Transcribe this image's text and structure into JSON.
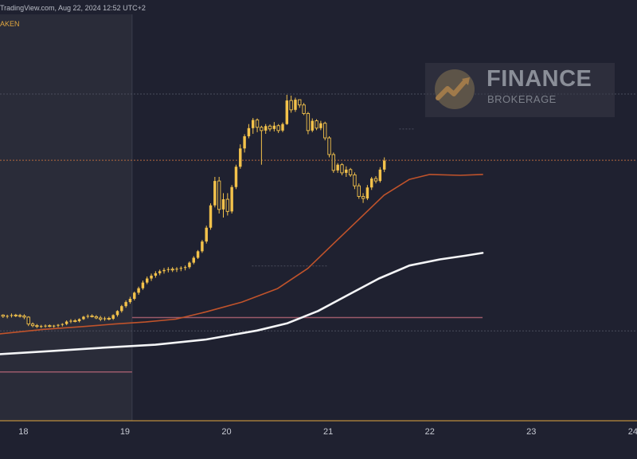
{
  "header": {
    "source": "TradingView.com, Aug 22, 2024 12:52 UTC+2",
    "exchange": "AKEN"
  },
  "watermark": {
    "brand": "FINANCE",
    "sub": "BROKERAGE",
    "logo_icon": "finance-logo-icon"
  },
  "colors": {
    "background": "#1f2130",
    "session_shade": "#2a2c39",
    "bull_candle": "#f3c24b",
    "ma_short": "#c0532b",
    "ma_long": "#f4f5f7",
    "price_line": "#b3683f",
    "level_line": "#9c5a6a"
  },
  "chart_data": {
    "type": "candlestick",
    "x_domain": [
      17.77,
      24.04
    ],
    "y_domain": [
      0,
      1
    ],
    "x_ticks": [
      {
        "value": 18,
        "label": "18"
      },
      {
        "value": 19,
        "label": "19"
      },
      {
        "value": 20,
        "label": "20"
      },
      {
        "value": 21,
        "label": "21"
      },
      {
        "value": 22,
        "label": "22"
      },
      {
        "value": 23,
        "label": "23"
      },
      {
        "value": 24,
        "label": "24"
      }
    ],
    "shaded_range": [
      17.77,
      19.07
    ],
    "candle_start_x": 17.8,
    "candle_step": 0.0417,
    "candles": [
      [
        0.26,
        0.262,
        0.253,
        0.257
      ],
      [
        0.257,
        0.261,
        0.252,
        0.258
      ],
      [
        0.258,
        0.264,
        0.254,
        0.26
      ],
      [
        0.26,
        0.263,
        0.255,
        0.259
      ],
      [
        0.259,
        0.263,
        0.254,
        0.258
      ],
      [
        0.258,
        0.262,
        0.25,
        0.255
      ],
      [
        0.255,
        0.257,
        0.233,
        0.238
      ],
      [
        0.238,
        0.242,
        0.23,
        0.234
      ],
      [
        0.234,
        0.238,
        0.228,
        0.232
      ],
      [
        0.232,
        0.236,
        0.228,
        0.233
      ],
      [
        0.233,
        0.237,
        0.229,
        0.234
      ],
      [
        0.234,
        0.237,
        0.23,
        0.233
      ],
      [
        0.233,
        0.236,
        0.229,
        0.234
      ],
      [
        0.234,
        0.238,
        0.23,
        0.236
      ],
      [
        0.236,
        0.24,
        0.232,
        0.238
      ],
      [
        0.238,
        0.247,
        0.235,
        0.244
      ],
      [
        0.244,
        0.25,
        0.24,
        0.246
      ],
      [
        0.246,
        0.25,
        0.242,
        0.245
      ],
      [
        0.245,
        0.252,
        0.242,
        0.25
      ],
      [
        0.25,
        0.258,
        0.248,
        0.256
      ],
      [
        0.256,
        0.262,
        0.252,
        0.258
      ],
      [
        0.258,
        0.262,
        0.254,
        0.256
      ],
      [
        0.256,
        0.26,
        0.25,
        0.253
      ],
      [
        0.253,
        0.258,
        0.245,
        0.25
      ],
      [
        0.25,
        0.256,
        0.246,
        0.252
      ],
      [
        0.252,
        0.256,
        0.247,
        0.251
      ],
      [
        0.251,
        0.262,
        0.248,
        0.26
      ],
      [
        0.26,
        0.272,
        0.256,
        0.27
      ],
      [
        0.27,
        0.285,
        0.266,
        0.282
      ],
      [
        0.282,
        0.296,
        0.278,
        0.292
      ],
      [
        0.292,
        0.305,
        0.288,
        0.3
      ],
      [
        0.3,
        0.318,
        0.296,
        0.315
      ],
      [
        0.315,
        0.33,
        0.31,
        0.326
      ],
      [
        0.326,
        0.345,
        0.322,
        0.34
      ],
      [
        0.34,
        0.355,
        0.336,
        0.35
      ],
      [
        0.35,
        0.362,
        0.344,
        0.357
      ],
      [
        0.357,
        0.368,
        0.352,
        0.363
      ],
      [
        0.363,
        0.372,
        0.358,
        0.368
      ],
      [
        0.368,
        0.376,
        0.362,
        0.371
      ],
      [
        0.371,
        0.378,
        0.365,
        0.373
      ],
      [
        0.373,
        0.378,
        0.366,
        0.372
      ],
      [
        0.372,
        0.378,
        0.366,
        0.374
      ],
      [
        0.374,
        0.38,
        0.368,
        0.376
      ],
      [
        0.376,
        0.382,
        0.37,
        0.378
      ],
      [
        0.378,
        0.392,
        0.374,
        0.389
      ],
      [
        0.389,
        0.405,
        0.385,
        0.401
      ],
      [
        0.401,
        0.42,
        0.398,
        0.417
      ],
      [
        0.417,
        0.445,
        0.413,
        0.441
      ],
      [
        0.441,
        0.48,
        0.436,
        0.475
      ],
      [
        0.475,
        0.535,
        0.47,
        0.53
      ],
      [
        0.53,
        0.6,
        0.525,
        0.59
      ],
      [
        0.59,
        0.6,
        0.51,
        0.52
      ],
      [
        0.52,
        0.56,
        0.5,
        0.545
      ],
      [
        0.545,
        0.56,
        0.505,
        0.515
      ],
      [
        0.515,
        0.58,
        0.51,
        0.575
      ],
      [
        0.575,
        0.63,
        0.57,
        0.625
      ],
      [
        0.625,
        0.68,
        0.62,
        0.67
      ],
      [
        0.67,
        0.705,
        0.66,
        0.7
      ],
      [
        0.7,
        0.73,
        0.695,
        0.72
      ],
      [
        0.72,
        0.745,
        0.706,
        0.74
      ],
      [
        0.74,
        0.744,
        0.71,
        0.722
      ],
      [
        0.722,
        0.726,
        0.63,
        0.714
      ],
      [
        0.714,
        0.73,
        0.706,
        0.725
      ],
      [
        0.725,
        0.729,
        0.712,
        0.718
      ],
      [
        0.718,
        0.735,
        0.712,
        0.726
      ],
      [
        0.726,
        0.73,
        0.708,
        0.714
      ],
      [
        0.714,
        0.734,
        0.71,
        0.73
      ],
      [
        0.73,
        0.802,
        0.728,
        0.788
      ],
      [
        0.788,
        0.8,
        0.758,
        0.765
      ],
      [
        0.765,
        0.795,
        0.76,
        0.79
      ],
      [
        0.79,
        0.79,
        0.77,
        0.777
      ],
      [
        0.777,
        0.782,
        0.752,
        0.756
      ],
      [
        0.756,
        0.76,
        0.705,
        0.714
      ],
      [
        0.714,
        0.744,
        0.71,
        0.738
      ],
      [
        0.738,
        0.742,
        0.715,
        0.72
      ],
      [
        0.72,
        0.738,
        0.715,
        0.732
      ],
      [
        0.732,
        0.736,
        0.69,
        0.696
      ],
      [
        0.696,
        0.7,
        0.648,
        0.655
      ],
      [
        0.655,
        0.66,
        0.61,
        0.616
      ],
      [
        0.616,
        0.634,
        0.61,
        0.63
      ],
      [
        0.63,
        0.634,
        0.604,
        0.61
      ],
      [
        0.61,
        0.626,
        0.6,
        0.618
      ],
      [
        0.618,
        0.622,
        0.6,
        0.605
      ],
      [
        0.605,
        0.611,
        0.57,
        0.578
      ],
      [
        0.578,
        0.584,
        0.546,
        0.552
      ],
      [
        0.552,
        0.56,
        0.536,
        0.547
      ],
      [
        0.547,
        0.58,
        0.543,
        0.574
      ],
      [
        0.574,
        0.6,
        0.568,
        0.596
      ],
      [
        0.596,
        0.602,
        0.584,
        0.59
      ],
      [
        0.59,
        0.624,
        0.586,
        0.618
      ],
      [
        0.618,
        0.648,
        0.612,
        0.64
      ]
    ],
    "ma_short": [
      [
        17.77,
        0.214
      ],
      [
        18.2,
        0.225
      ],
      [
        18.6,
        0.232
      ],
      [
        18.9,
        0.238
      ],
      [
        19.2,
        0.243
      ],
      [
        19.5,
        0.25
      ],
      [
        19.8,
        0.268
      ],
      [
        20.15,
        0.292
      ],
      [
        20.5,
        0.325
      ],
      [
        20.8,
        0.375
      ],
      [
        21.05,
        0.435
      ],
      [
        21.3,
        0.495
      ],
      [
        21.55,
        0.555
      ],
      [
        21.8,
        0.594
      ],
      [
        22.0,
        0.606
      ],
      [
        22.3,
        0.604
      ],
      [
        22.52,
        0.606
      ]
    ],
    "ma_long": [
      [
        17.77,
        0.164
      ],
      [
        18.3,
        0.172
      ],
      [
        18.8,
        0.18
      ],
      [
        19.3,
        0.187
      ],
      [
        19.8,
        0.2
      ],
      [
        20.3,
        0.222
      ],
      [
        20.6,
        0.24
      ],
      [
        20.9,
        0.27
      ],
      [
        21.2,
        0.31
      ],
      [
        21.5,
        0.35
      ],
      [
        21.8,
        0.382
      ],
      [
        22.1,
        0.397
      ],
      [
        22.35,
        0.406
      ],
      [
        22.52,
        0.413
      ]
    ],
    "horizontal_lines": [
      {
        "name": "price-line",
        "y": 0.641,
        "x_from": 17.77,
        "x_to": 24.04,
        "style": "dotted"
      },
      {
        "name": "level-line-upper",
        "y": 0.254,
        "x_from": 19.07,
        "x_to": 22.52,
        "style": "solid"
      },
      {
        "name": "level-line-lower",
        "y": 0.12,
        "x_from": 17.77,
        "x_to": 19.07,
        "style": "solid"
      },
      {
        "name": "gridline-top",
        "y": 0.804,
        "x_from": 17.77,
        "x_to": 24.04,
        "style": "dotted"
      },
      {
        "name": "gridline-bottom",
        "y": 0.221,
        "x_from": 17.77,
        "x_to": 24.04,
        "style": "dotted"
      },
      {
        "name": "session-marker-high",
        "y": 0.718,
        "x_from": 21.7,
        "x_to": 21.85,
        "style": "dotted"
      },
      {
        "name": "session-marker-mid",
        "y": 0.381,
        "x_from": 20.25,
        "x_to": 21.0,
        "style": "dotted"
      }
    ],
    "grid": false,
    "legend": "none"
  }
}
